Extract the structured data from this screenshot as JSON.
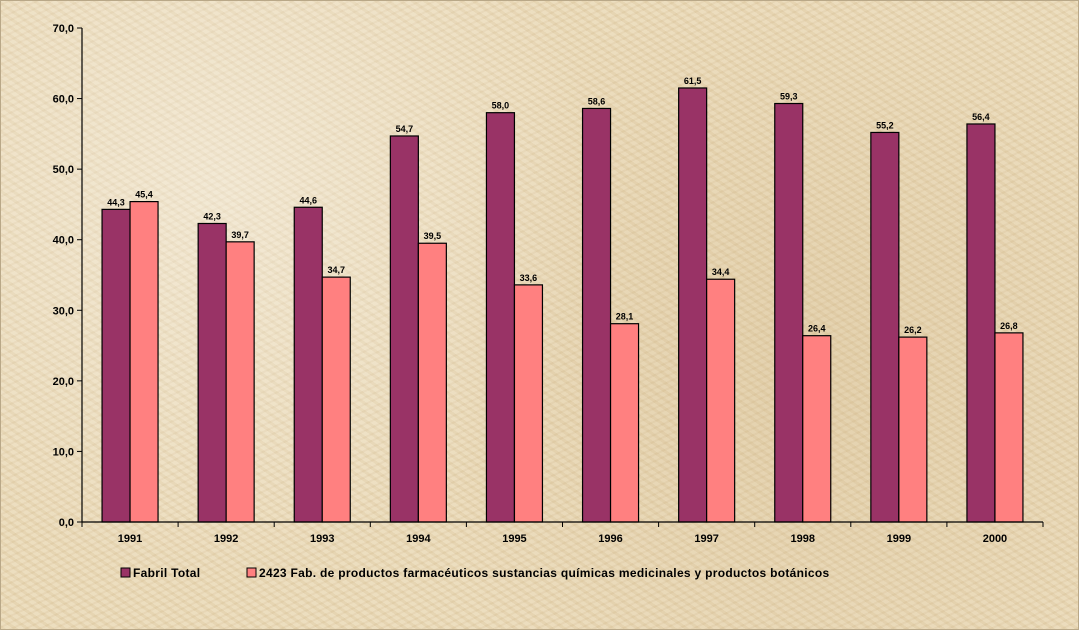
{
  "chart_data": {
    "type": "bar",
    "title": "",
    "xlabel": "",
    "ylabel": "",
    "categories": [
      "1991",
      "1992",
      "1993",
      "1994",
      "1995",
      "1996",
      "1997",
      "1998",
      "1999",
      "2000"
    ],
    "y_ticks": [
      "0,0",
      "10,0",
      "20,0",
      "30,0",
      "40,0",
      "50,0",
      "60,0",
      "70,0"
    ],
    "ylim": [
      0,
      70
    ],
    "grid": false,
    "legend_position": "bottom",
    "series": [
      {
        "name": "Fabril Total",
        "color": "#993366",
        "values": [
          44.3,
          42.3,
          44.6,
          54.7,
          58.0,
          58.6,
          61.5,
          59.3,
          55.2,
          56.4
        ],
        "labels": [
          "44,3",
          "42,3",
          "44,6",
          "54,7",
          "58,0",
          "58,6",
          "61,5",
          "59,3",
          "55,2",
          "56,4"
        ]
      },
      {
        "name": "2423 Fab. de productos farmacéuticos sustancias químicas medicinales y productos botánicos",
        "color": "#ff8080",
        "values": [
          45.4,
          39.7,
          34.7,
          39.5,
          33.6,
          28.1,
          34.4,
          26.4,
          26.2,
          26.8
        ],
        "labels": [
          "45,4",
          "39,7",
          "34,7",
          "39,5",
          "33,6",
          "28,1",
          "34,4",
          "26,4",
          "26,2",
          "26,8"
        ]
      }
    ]
  }
}
